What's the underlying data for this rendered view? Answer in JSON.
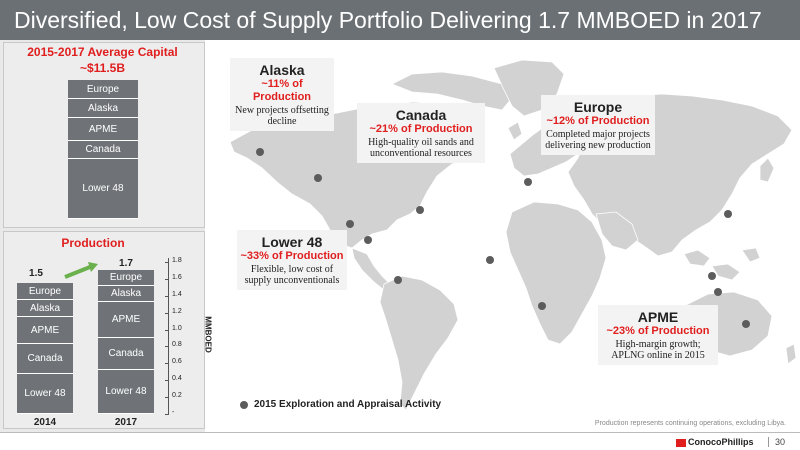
{
  "slide": {
    "title": "Diversified, Low Cost of Supply Portfolio Delivering 1.7 MMBOED in 2017",
    "page_number": "30",
    "logo_text": "ConocoPhillips",
    "footnote": "Production represents continuing operations, excluding Libya."
  },
  "capital": {
    "title_line1": "2015-2017 Average Capital",
    "title_line2": "~$11.5B",
    "segments": [
      "Europe",
      "Alaska",
      "APME",
      "Canada",
      "Lower 48"
    ]
  },
  "production": {
    "title": "Production",
    "axis_label": "MMBOED",
    "axis_ticks": [
      "-",
      "0.2",
      "0.4",
      "0.6",
      "0.8",
      "1.0",
      "1.2",
      "1.4",
      "1.6",
      "1.8"
    ],
    "bars": [
      {
        "year": "2014",
        "total": "1.5",
        "segments": [
          "Europe",
          "Alaska",
          "APME",
          "Canada",
          "Lower 48"
        ]
      },
      {
        "year": "2017",
        "total": "1.7",
        "segments": [
          "Europe",
          "Alaska",
          "APME",
          "Canada",
          "Lower 48"
        ]
      }
    ]
  },
  "callouts": {
    "alaska": {
      "region": "Alaska",
      "pct": "~11% of Production",
      "desc": "New projects offsetting decline"
    },
    "canada": {
      "region": "Canada",
      "pct": "~21% of Production",
      "desc": "High-quality oil sands and unconventional resources"
    },
    "europe": {
      "region": "Europe",
      "pct": "~12% of Production",
      "desc": "Completed major projects delivering new production"
    },
    "lower48": {
      "region": "Lower 48",
      "pct": "~33% of Production",
      "desc": "Flexible, low cost of supply unconventionals"
    },
    "apme": {
      "region": "APME",
      "pct": "~23% of Production",
      "desc": "High-margin growth; APLNG online in 2015"
    }
  },
  "legend": {
    "text": "2015 Exploration and Appraisal Activity"
  },
  "colors": {
    "accent_red": "#e01e1e",
    "bar_gray": "#6f7377",
    "title_gray": "#6b7075",
    "arrow_green": "#6ab04c"
  }
}
